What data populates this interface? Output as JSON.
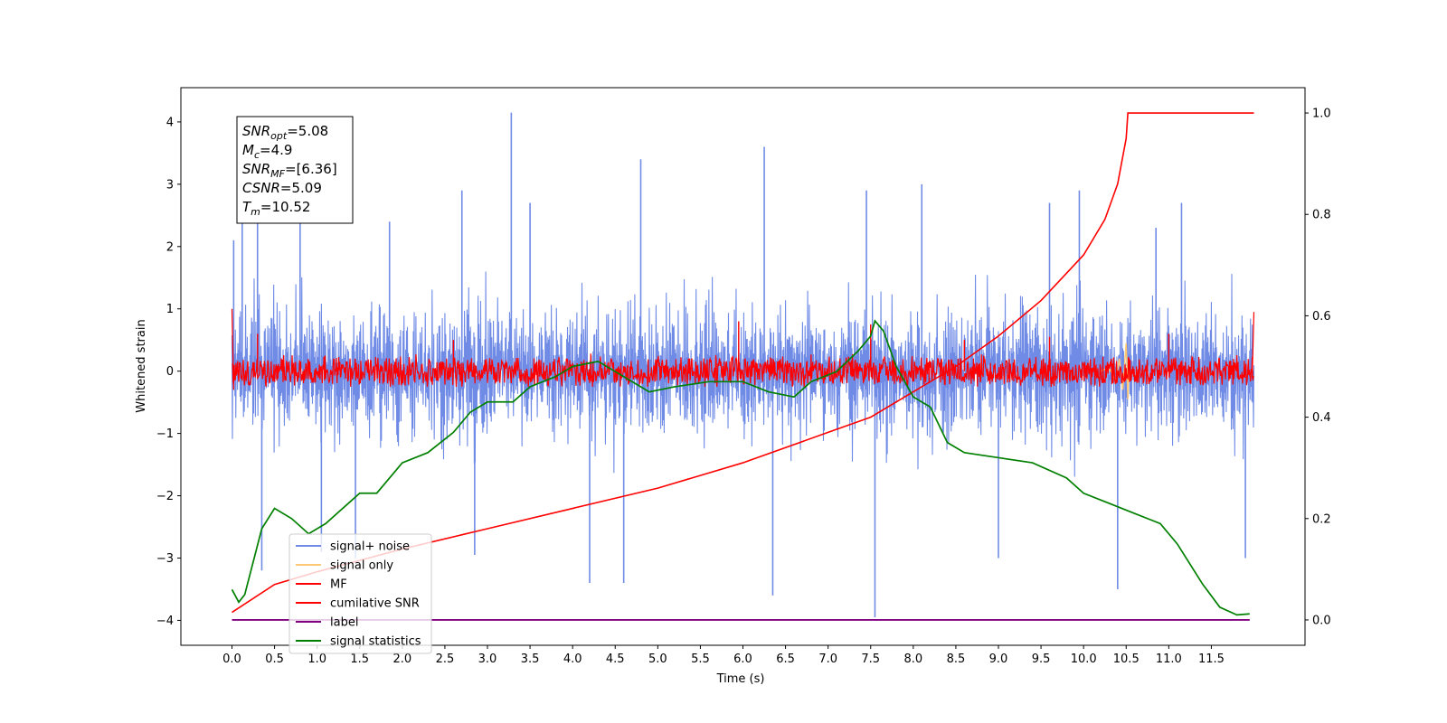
{
  "chart_data": {
    "type": "line",
    "xlabel": "Time (s)",
    "ylabel": "Whitened strain",
    "xlim": [
      -0.6,
      12.6
    ],
    "ylim_left": [
      -4.4,
      4.55
    ],
    "ylim_right": [
      -0.05,
      1.05
    ],
    "x_ticks": [
      0.0,
      0.5,
      1.0,
      1.5,
      2.0,
      2.5,
      3.0,
      3.5,
      4.0,
      4.5,
      5.0,
      5.5,
      6.0,
      6.5,
      7.0,
      7.5,
      8.0,
      8.5,
      9.0,
      9.5,
      10.0,
      10.5,
      11.0,
      11.5
    ],
    "x_tick_labels": [
      "0.0",
      "0.5",
      "1.0",
      "1.5",
      "2.0",
      "2.5",
      "3.0",
      "3.5",
      "4.0",
      "4.5",
      "5.0",
      "5.5",
      "6.0",
      "6.5",
      "7.0",
      "7.5",
      "8.0",
      "8.5",
      "9.0",
      "9.5",
      "10.0",
      "10.5",
      "11.0",
      "11.5"
    ],
    "y_left_ticks": [
      4,
      3,
      2,
      1,
      0,
      -1,
      -2,
      -3,
      -4
    ],
    "y_left_tick_labels": [
      "4",
      "3",
      "2",
      "1",
      "0",
      "−1",
      "−2",
      "−3",
      "−4"
    ],
    "y_right_ticks": [
      1.0,
      0.8,
      0.6,
      0.4,
      0.2,
      0.0
    ],
    "y_right_tick_labels": [
      "1.0",
      "0.8",
      "0.6",
      "0.4",
      "0.2",
      "0.0"
    ],
    "grid": false,
    "legend_position": "lower-left",
    "signal_noise": {
      "axis": "left",
      "color": "#6f8be6",
      "x_range": [
        0.0,
        12.0
      ],
      "typical_extent": [
        -2.2,
        2.3
      ],
      "peaks": [
        {
          "x": 0.02,
          "y": 2.1
        },
        {
          "x": 0.12,
          "y": 3.5
        },
        {
          "x": 0.3,
          "y": 3.0
        },
        {
          "x": 0.35,
          "y": -3.2
        },
        {
          "x": 0.8,
          "y": 2.7
        },
        {
          "x": 1.05,
          "y": -2.9
        },
        {
          "x": 1.45,
          "y": -3.0
        },
        {
          "x": 1.85,
          "y": 2.4
        },
        {
          "x": 2.7,
          "y": 2.9
        },
        {
          "x": 2.85,
          "y": -2.95
        },
        {
          "x": 3.28,
          "y": 4.15
        },
        {
          "x": 3.5,
          "y": 2.7
        },
        {
          "x": 4.2,
          "y": -3.4
        },
        {
          "x": 4.6,
          "y": -3.4
        },
        {
          "x": 4.8,
          "y": 3.4
        },
        {
          "x": 6.25,
          "y": 3.6
        },
        {
          "x": 6.35,
          "y": -3.6
        },
        {
          "x": 7.45,
          "y": 2.9
        },
        {
          "x": 7.55,
          "y": -3.95
        },
        {
          "x": 8.1,
          "y": 3.0
        },
        {
          "x": 9.0,
          "y": -3.0
        },
        {
          "x": 9.6,
          "y": 2.7
        },
        {
          "x": 9.95,
          "y": 2.9
        },
        {
          "x": 10.4,
          "y": -3.5
        },
        {
          "x": 10.85,
          "y": 2.3
        },
        {
          "x": 11.15,
          "y": 2.7
        },
        {
          "x": 11.9,
          "y": -3.0
        }
      ]
    },
    "signal_only": {
      "axis": "left",
      "color": "#ffc875",
      "points": [
        {
          "x": 10.2,
          "y": 0.0
        },
        {
          "x": 10.3,
          "y": 0.05
        },
        {
          "x": 10.38,
          "y": -0.15
        },
        {
          "x": 10.42,
          "y": 0.2
        },
        {
          "x": 10.46,
          "y": -0.3
        },
        {
          "x": 10.5,
          "y": 0.45
        },
        {
          "x": 10.52,
          "y": -0.45
        },
        {
          "x": 10.53,
          "y": 0.0
        }
      ]
    },
    "mf": {
      "axis": "left",
      "color": "#ff0000",
      "x_range": [
        0.0,
        12.0
      ],
      "band": [
        -0.25,
        0.3
      ],
      "start_spike": [
        {
          "x": 0.0,
          "y": 1.0
        },
        {
          "x": 0.02,
          "y": -0.3
        }
      ],
      "end_spike": [
        {
          "x": 11.98,
          "y": -0.1
        },
        {
          "x": 12.0,
          "y": 0.95
        }
      ],
      "peaks": [
        {
          "x": 0.3,
          "y": 0.6
        },
        {
          "x": 2.6,
          "y": 0.5
        },
        {
          "x": 5.95,
          "y": 0.8
        },
        {
          "x": 7.5,
          "y": 0.75
        },
        {
          "x": 8.6,
          "y": 0.5
        },
        {
          "x": 9.6,
          "y": 0.55
        },
        {
          "x": 11.0,
          "y": 0.6
        }
      ]
    },
    "cumulative_snr": {
      "axis": "right",
      "color": "#ff0000",
      "points": [
        {
          "x": 0.0,
          "y": 0.015
        },
        {
          "x": 0.5,
          "y": 0.07
        },
        {
          "x": 1.0,
          "y": 0.095
        },
        {
          "x": 2.0,
          "y": 0.14
        },
        {
          "x": 3.0,
          "y": 0.18
        },
        {
          "x": 4.0,
          "y": 0.22
        },
        {
          "x": 5.0,
          "y": 0.26
        },
        {
          "x": 6.0,
          "y": 0.31
        },
        {
          "x": 7.0,
          "y": 0.37
        },
        {
          "x": 7.5,
          "y": 0.4
        },
        {
          "x": 8.0,
          "y": 0.45
        },
        {
          "x": 8.5,
          "y": 0.5
        },
        {
          "x": 9.0,
          "y": 0.56
        },
        {
          "x": 9.5,
          "y": 0.63
        },
        {
          "x": 10.0,
          "y": 0.72
        },
        {
          "x": 10.25,
          "y": 0.79
        },
        {
          "x": 10.4,
          "y": 0.86
        },
        {
          "x": 10.5,
          "y": 0.95
        },
        {
          "x": 10.52,
          "y": 1.0
        },
        {
          "x": 12.0,
          "y": 1.0
        }
      ]
    },
    "label": {
      "axis": "right",
      "color": "#800080",
      "points": [
        {
          "x": 0.0,
          "y": 0.0
        },
        {
          "x": 11.95,
          "y": 0.0
        }
      ]
    },
    "signal_statistics": {
      "axis": "right",
      "color": "#008000",
      "points": [
        {
          "x": 0.0,
          "y": 0.06
        },
        {
          "x": 0.08,
          "y": 0.035
        },
        {
          "x": 0.15,
          "y": 0.05
        },
        {
          "x": 0.35,
          "y": 0.18
        },
        {
          "x": 0.5,
          "y": 0.22
        },
        {
          "x": 0.7,
          "y": 0.2
        },
        {
          "x": 0.9,
          "y": 0.17
        },
        {
          "x": 1.1,
          "y": 0.19
        },
        {
          "x": 1.3,
          "y": 0.22
        },
        {
          "x": 1.5,
          "y": 0.25
        },
        {
          "x": 1.7,
          "y": 0.25
        },
        {
          "x": 1.85,
          "y": 0.28
        },
        {
          "x": 2.0,
          "y": 0.31
        },
        {
          "x": 2.3,
          "y": 0.33
        },
        {
          "x": 2.6,
          "y": 0.37
        },
        {
          "x": 2.8,
          "y": 0.41
        },
        {
          "x": 3.0,
          "y": 0.43
        },
        {
          "x": 3.3,
          "y": 0.43
        },
        {
          "x": 3.5,
          "y": 0.46
        },
        {
          "x": 3.8,
          "y": 0.48
        },
        {
          "x": 4.0,
          "y": 0.5
        },
        {
          "x": 4.3,
          "y": 0.51
        },
        {
          "x": 4.6,
          "y": 0.48
        },
        {
          "x": 4.9,
          "y": 0.45
        },
        {
          "x": 5.2,
          "y": 0.46
        },
        {
          "x": 5.6,
          "y": 0.47
        },
        {
          "x": 6.0,
          "y": 0.47
        },
        {
          "x": 6.3,
          "y": 0.45
        },
        {
          "x": 6.6,
          "y": 0.44
        },
        {
          "x": 6.8,
          "y": 0.47
        },
        {
          "x": 7.1,
          "y": 0.49
        },
        {
          "x": 7.35,
          "y": 0.53
        },
        {
          "x": 7.5,
          "y": 0.56
        },
        {
          "x": 7.55,
          "y": 0.59
        },
        {
          "x": 7.65,
          "y": 0.57
        },
        {
          "x": 7.8,
          "y": 0.5
        },
        {
          "x": 8.0,
          "y": 0.44
        },
        {
          "x": 8.2,
          "y": 0.42
        },
        {
          "x": 8.4,
          "y": 0.35
        },
        {
          "x": 8.6,
          "y": 0.33
        },
        {
          "x": 9.0,
          "y": 0.32
        },
        {
          "x": 9.4,
          "y": 0.31
        },
        {
          "x": 9.8,
          "y": 0.28
        },
        {
          "x": 10.0,
          "y": 0.25
        },
        {
          "x": 10.3,
          "y": 0.23
        },
        {
          "x": 10.6,
          "y": 0.21
        },
        {
          "x": 10.9,
          "y": 0.19
        },
        {
          "x": 11.1,
          "y": 0.15
        },
        {
          "x": 11.4,
          "y": 0.07
        },
        {
          "x": 11.6,
          "y": 0.025
        },
        {
          "x": 11.8,
          "y": 0.01
        },
        {
          "x": 11.95,
          "y": 0.012
        }
      ]
    }
  },
  "legend": [
    {
      "label": "signal+ noise",
      "color": "#6f8be6"
    },
    {
      "label": "signal only",
      "color": "#ffc875"
    },
    {
      "label": "MF",
      "color": "#ff0000"
    },
    {
      "label": "cumilative SNR",
      "color": "#ff0000"
    },
    {
      "label": "label",
      "color": "#800080"
    },
    {
      "label": "signal statistics",
      "color": "#008000"
    }
  ],
  "info_box": [
    {
      "symbol": "SNR",
      "sub": "opt",
      "value": "=5.08"
    },
    {
      "symbol": "M",
      "sub": "c",
      "value": "=4.9"
    },
    {
      "symbol": "SNR",
      "sub": "MF",
      "value": "=[6.36]"
    },
    {
      "symbol": "CSNR",
      "sub": "",
      "value": "=5.09"
    },
    {
      "symbol": "T",
      "sub": "m",
      "value": "=10.52"
    }
  ]
}
